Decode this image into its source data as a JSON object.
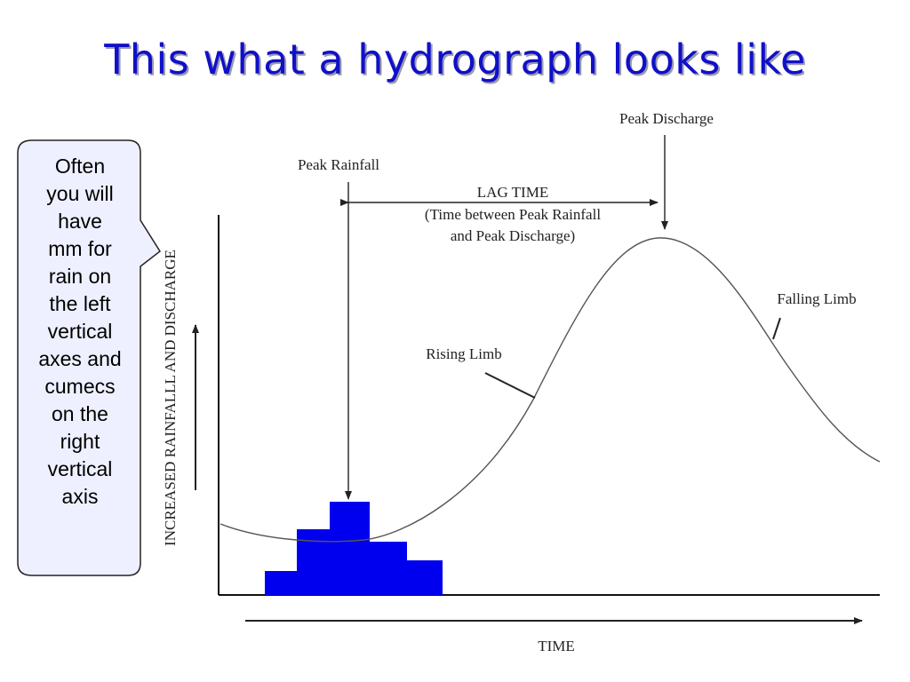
{
  "slide": {
    "title": "This what a hydrograph looks like"
  },
  "callout": {
    "text": "Often\nyou will\nhave\nmm for\nrain on\nthe left\nvertical\naxes and\ncumecs\non the\nright\nvertical\naxis"
  },
  "diagram": {
    "y_axis_label": "INCREASED RAINFALLL AND DISCHARGE",
    "x_axis_label": "TIME",
    "peak_rainfall_label": "Peak Rainfall",
    "peak_discharge_label": "Peak Discharge",
    "lag_time_title": "LAG TIME",
    "lag_time_desc_1": "(Time between Peak Rainfall",
    "lag_time_desc_2": "and Peak Discharge)",
    "rising_limb_label": "Rising Limb",
    "falling_limb_label": "Falling Limb",
    "colors": {
      "rainfall_bars": "#0000ee",
      "title": "#1010c8",
      "callout_fill": "#eef0ff"
    }
  }
}
